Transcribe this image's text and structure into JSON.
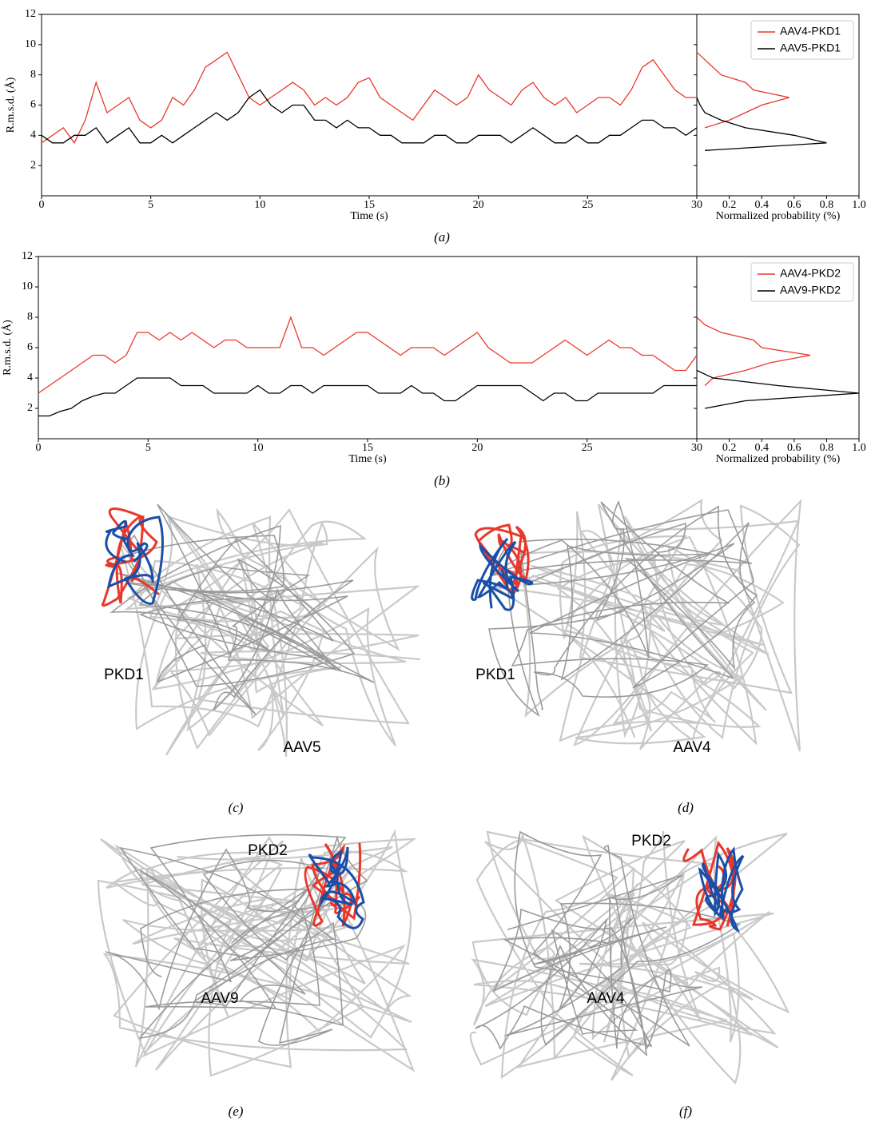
{
  "chart_data": [
    {
      "type": "line",
      "caption": "(a)",
      "xlabel": "Time (s)",
      "ylabel": "R.m.s.d. (Å)",
      "xlim": [
        0,
        30
      ],
      "xticks": [
        0,
        5,
        10,
        15,
        20,
        25,
        30
      ],
      "ylim": [
        0,
        12
      ],
      "yticks": [
        2,
        4,
        6,
        8,
        10,
        12
      ],
      "legend": "upper right",
      "x": [
        0,
        0.5,
        1,
        1.5,
        2,
        2.5,
        3,
        3.5,
        4,
        4.5,
        5,
        5.5,
        6,
        6.5,
        7,
        7.5,
        8,
        8.5,
        9,
        9.5,
        10,
        10.5,
        11,
        11.5,
        12,
        12.5,
        13,
        13.5,
        14,
        14.5,
        15,
        15.5,
        16,
        16.5,
        17,
        17.5,
        18,
        18.5,
        19,
        19.5,
        20,
        20.5,
        21,
        21.5,
        22,
        22.5,
        23,
        23.5,
        24,
        24.5,
        25,
        25.5,
        26,
        26.5,
        27,
        27.5,
        28,
        28.5,
        29,
        29.5,
        30
      ],
      "series": [
        {
          "name": "AAV4-PKD1",
          "color": "#e8382b",
          "values": [
            3.5,
            4.0,
            4.5,
            3.5,
            5.0,
            7.5,
            5.5,
            6.0,
            6.5,
            5.0,
            4.5,
            5.0,
            6.5,
            6.0,
            7.0,
            8.5,
            9.0,
            9.5,
            8.0,
            6.5,
            6.0,
            6.5,
            7.0,
            7.5,
            7.0,
            6.0,
            6.5,
            6.0,
            6.5,
            7.5,
            7.8,
            6.5,
            6.0,
            5.5,
            5.0,
            6.0,
            7.0,
            6.5,
            6.0,
            6.5,
            8.0,
            7.0,
            6.5,
            6.0,
            7.0,
            7.5,
            6.5,
            6.0,
            6.5,
            5.5,
            6.0,
            6.5,
            6.5,
            6.0,
            7.0,
            8.5,
            9.0,
            8.0,
            7.0,
            6.5,
            6.5
          ]
        },
        {
          "name": "AAV5-PKD1",
          "color": "#000000",
          "values": [
            4.0,
            3.5,
            3.5,
            4.0,
            4.0,
            4.5,
            3.5,
            4.0,
            4.5,
            3.5,
            3.5,
            4.0,
            3.5,
            4.0,
            4.5,
            5.0,
            5.5,
            5.0,
            5.5,
            6.5,
            7.0,
            6.0,
            5.5,
            6.0,
            6.0,
            5.0,
            5.0,
            4.5,
            5.0,
            4.5,
            4.5,
            4.0,
            4.0,
            3.5,
            3.5,
            3.5,
            4.0,
            4.0,
            3.5,
            3.5,
            4.0,
            4.0,
            4.0,
            3.5,
            4.0,
            4.5,
            4.0,
            3.5,
            3.5,
            4.0,
            3.5,
            3.5,
            4.0,
            4.0,
            4.5,
            5.0,
            5.0,
            4.5,
            4.5,
            4.0,
            4.5
          ]
        }
      ],
      "hist": {
        "xlabel": "Normalized probability (%)",
        "xlim": [
          0,
          1
        ],
        "xticks": [
          0.2,
          0.4,
          0.6,
          0.8,
          {
            "value": 1,
            "label": "1.0"
          }
        ],
        "series": [
          {
            "color": "#e8382b",
            "y": [
              4.5,
              5,
              5.5,
              6,
              6.5,
              7,
              7.5,
              8,
              8.5,
              9,
              9.5
            ],
            "values": [
              0.05,
              0.2,
              0.3,
              0.4,
              0.57,
              0.35,
              0.3,
              0.15,
              0.1,
              0.05,
              0
            ]
          },
          {
            "color": "#000000",
            "y": [
              3,
              3.5,
              4,
              4.5,
              5,
              5.5,
              6,
              6.5
            ],
            "values": [
              0.05,
              0.8,
              0.6,
              0.3,
              0.15,
              0.05,
              0.02,
              0
            ]
          }
        ]
      }
    },
    {
      "type": "line",
      "caption": "(b)",
      "xlabel": "Time (s)",
      "ylabel": "R.m.s.d. (Å)",
      "xlim": [
        0,
        30
      ],
      "xticks": [
        0,
        5,
        10,
        15,
        20,
        25,
        30
      ],
      "ylim": [
        0,
        12
      ],
      "yticks": [
        2,
        4,
        6,
        8,
        10,
        12
      ],
      "legend": "upper right",
      "x": [
        0,
        0.5,
        1,
        1.5,
        2,
        2.5,
        3,
        3.5,
        4,
        4.5,
        5,
        5.5,
        6,
        6.5,
        7,
        7.5,
        8,
        8.5,
        9,
        9.5,
        10,
        10.5,
        11,
        11.5,
        12,
        12.5,
        13,
        13.5,
        14,
        14.5,
        15,
        15.5,
        16,
        16.5,
        17,
        17.5,
        18,
        18.5,
        19,
        19.5,
        20,
        20.5,
        21,
        21.5,
        22,
        22.5,
        23,
        23.5,
        24,
        24.5,
        25,
        25.5,
        26,
        26.5,
        27,
        27.5,
        28,
        28.5,
        29,
        29.5,
        30
      ],
      "series": [
        {
          "name": "AAV4-PKD2",
          "color": "#e8382b",
          "values": [
            3.0,
            3.5,
            4.0,
            4.5,
            5.0,
            5.5,
            5.5,
            5.0,
            5.5,
            7.0,
            7.0,
            6.5,
            7.0,
            6.5,
            7.0,
            6.5,
            6.0,
            6.5,
            6.5,
            6.0,
            6.0,
            6.0,
            6.0,
            8.0,
            6.0,
            6.0,
            5.5,
            6.0,
            6.5,
            7.0,
            7.0,
            6.5,
            6.0,
            5.5,
            6.0,
            6.0,
            6.0,
            5.5,
            6.0,
            6.5,
            7.0,
            6.0,
            5.5,
            5.0,
            5.0,
            5.0,
            5.5,
            6.0,
            6.5,
            6.0,
            5.5,
            6.0,
            6.5,
            6.0,
            6.0,
            5.5,
            5.5,
            5.0,
            4.5,
            4.5,
            5.5
          ]
        },
        {
          "name": "AAV9-PKD2",
          "color": "#000000",
          "values": [
            1.5,
            1.5,
            1.8,
            2.0,
            2.5,
            2.8,
            3.0,
            3.0,
            3.5,
            4.0,
            4.0,
            4.0,
            4.0,
            3.5,
            3.5,
            3.5,
            3.0,
            3.0,
            3.0,
            3.0,
            3.5,
            3.0,
            3.0,
            3.5,
            3.5,
            3.0,
            3.5,
            3.5,
            3.5,
            3.5,
            3.5,
            3.0,
            3.0,
            3.0,
            3.5,
            3.0,
            3.0,
            2.5,
            2.5,
            3.0,
            3.5,
            3.5,
            3.5,
            3.5,
            3.5,
            3.0,
            2.5,
            3.0,
            3.0,
            2.5,
            2.5,
            3.0,
            3.0,
            3.0,
            3.0,
            3.0,
            3.0,
            3.5,
            3.5,
            3.5,
            3.5
          ]
        }
      ],
      "hist": {
        "xlabel": "Normalized probability (%)",
        "xlim": [
          0,
          1
        ],
        "xticks": [
          0.2,
          0.4,
          0.6,
          0.8,
          {
            "value": 1,
            "label": "1.0"
          }
        ],
        "series": [
          {
            "color": "#e8382b",
            "y": [
              3.5,
              4,
              4.5,
              5,
              5.5,
              6,
              6.5,
              7,
              7.5,
              8
            ],
            "values": [
              0.05,
              0.1,
              0.3,
              0.45,
              0.7,
              0.4,
              0.35,
              0.15,
              0.05,
              0
            ]
          },
          {
            "color": "#000000",
            "y": [
              2,
              2.5,
              3,
              3.5,
              4,
              4.5
            ],
            "values": [
              0.05,
              0.3,
              1.0,
              0.5,
              0.1,
              0
            ]
          }
        ]
      }
    }
  ],
  "structures": [
    {
      "caption": "(c)",
      "labels": [
        "PKD1",
        "AAV5"
      ]
    },
    {
      "caption": "(d)",
      "labels": [
        "PKD1",
        "AAV4"
      ]
    },
    {
      "caption": "(e)",
      "labels": [
        "PKD2",
        "AAV9"
      ]
    },
    {
      "caption": "(f)",
      "labels": [
        "PKD2",
        "AAV4"
      ]
    }
  ]
}
